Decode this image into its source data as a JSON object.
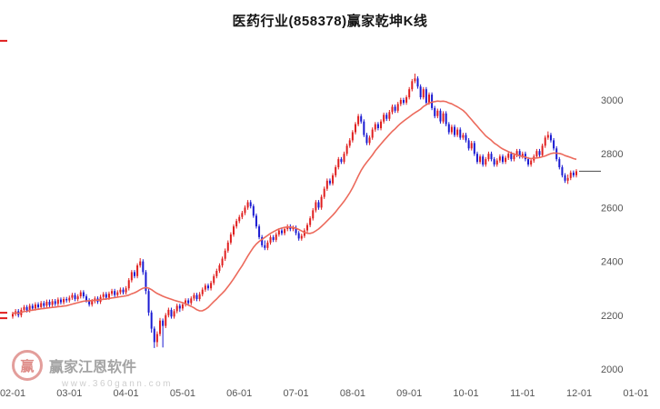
{
  "title": "医药行业(858378)赢家乾坤K线",
  "watermark": {
    "logo_char": "赢",
    "brand": "赢家江恩软件",
    "sub": "www.360gann.com"
  },
  "chart_data": {
    "type": "candlestick",
    "title": "医药行业(858378)赢家乾坤K线",
    "symbol": "858378",
    "x_ticks": [
      "02-01",
      "03-01",
      "04-01",
      "05-01",
      "06-01",
      "07-01",
      "08-01",
      "09-01",
      "10-01",
      "11-01",
      "12-01",
      "01-01"
    ],
    "y_ticks": [
      3000,
      2800,
      2600,
      2400,
      2200,
      2000
    ],
    "ylim": [
      1980,
      3220
    ],
    "grid": false,
    "legend": "none",
    "up_color": "#e01f1f",
    "down_color": "#1a1ad2",
    "ma_color": "#ec6a5c",
    "ma_period": 20,
    "last_price": 2735,
    "edge_ticks": [
      3220,
      2209,
      2189
    ],
    "candles": [
      [
        2195,
        2213,
        2187,
        2205
      ],
      [
        2205,
        2223,
        2197,
        2215
      ],
      [
        2215,
        2223,
        2192,
        2200
      ],
      [
        2200,
        2228,
        2192,
        2220
      ],
      [
        2220,
        2238,
        2212,
        2230
      ],
      [
        2230,
        2238,
        2210,
        2218
      ],
      [
        2218,
        2243,
        2210,
        2235
      ],
      [
        2235,
        2243,
        2217,
        2225
      ],
      [
        2225,
        2248,
        2217,
        2240
      ],
      [
        2240,
        2248,
        2222,
        2230
      ],
      [
        2230,
        2253,
        2222,
        2245
      ],
      [
        2245,
        2253,
        2227,
        2235
      ],
      [
        2235,
        2258,
        2227,
        2250
      ],
      [
        2250,
        2258,
        2230,
        2238
      ],
      [
        2238,
        2260,
        2230,
        2252
      ],
      [
        2252,
        2260,
        2234,
        2242
      ],
      [
        2242,
        2266,
        2234,
        2258
      ],
      [
        2258,
        2266,
        2240,
        2248
      ],
      [
        2248,
        2268,
        2240,
        2260
      ],
      [
        2260,
        2268,
        2247,
        2255
      ],
      [
        2255,
        2273,
        2247,
        2265
      ],
      [
        2265,
        2283,
        2257,
        2275
      ],
      [
        2275,
        2283,
        2252,
        2260
      ],
      [
        2260,
        2278,
        2252,
        2270
      ],
      [
        2270,
        2293,
        2262,
        2285
      ],
      [
        2285,
        2293,
        2262,
        2270
      ],
      [
        2270,
        2278,
        2247,
        2255
      ],
      [
        2255,
        2263,
        2232,
        2240
      ],
      [
        2240,
        2260,
        2232,
        2252
      ],
      [
        2252,
        2270,
        2244,
        2262
      ],
      [
        2262,
        2270,
        2242,
        2250
      ],
      [
        2250,
        2276,
        2242,
        2268
      ],
      [
        2268,
        2286,
        2260,
        2278
      ],
      [
        2278,
        2286,
        2257,
        2265
      ],
      [
        2265,
        2288,
        2257,
        2280
      ],
      [
        2280,
        2298,
        2272,
        2290
      ],
      [
        2290,
        2298,
        2267,
        2275
      ],
      [
        2275,
        2293,
        2267,
        2285
      ],
      [
        2285,
        2303,
        2277,
        2295
      ],
      [
        2295,
        2303,
        2277,
        2285
      ],
      [
        2285,
        2308,
        2277,
        2300
      ],
      [
        2300,
        2338,
        2292,
        2330
      ],
      [
        2330,
        2368,
        2322,
        2360
      ],
      [
        2360,
        2368,
        2337,
        2345
      ],
      [
        2345,
        2393,
        2337,
        2385
      ],
      [
        2385,
        2412,
        2377,
        2400
      ],
      [
        2400,
        2408,
        2350,
        2360
      ],
      [
        2360,
        2368,
        2278,
        2290
      ],
      [
        2290,
        2298,
        2198,
        2210
      ],
      [
        2210,
        2218,
        2135,
        2150
      ],
      [
        2150,
        2158,
        2078,
        2100
      ],
      [
        2100,
        2140,
        2082,
        2130
      ],
      [
        2130,
        2190,
        2122,
        2180
      ],
      [
        2180,
        2188,
        2080,
        2160
      ],
      [
        2160,
        2208,
        2152,
        2200
      ],
      [
        2200,
        2228,
        2192,
        2220
      ],
      [
        2220,
        2228,
        2187,
        2195
      ],
      [
        2195,
        2223,
        2187,
        2215
      ],
      [
        2215,
        2243,
        2207,
        2235
      ],
      [
        2235,
        2243,
        2212,
        2225
      ],
      [
        2225,
        2248,
        2217,
        2240
      ],
      [
        2240,
        2263,
        2232,
        2255
      ],
      [
        2255,
        2263,
        2237,
        2245
      ],
      [
        2245,
        2270,
        2237,
        2262
      ],
      [
        2262,
        2283,
        2254,
        2275
      ],
      [
        2275,
        2283,
        2252,
        2260
      ],
      [
        2260,
        2286,
        2252,
        2278
      ],
      [
        2278,
        2303,
        2270,
        2295
      ],
      [
        2295,
        2318,
        2287,
        2310
      ],
      [
        2310,
        2318,
        2292,
        2300
      ],
      [
        2300,
        2328,
        2292,
        2320
      ],
      [
        2320,
        2353,
        2312,
        2345
      ],
      [
        2345,
        2373,
        2337,
        2365
      ],
      [
        2365,
        2393,
        2357,
        2385
      ],
      [
        2385,
        2418,
        2377,
        2410
      ],
      [
        2410,
        2448,
        2402,
        2440
      ],
      [
        2440,
        2478,
        2432,
        2470
      ],
      [
        2470,
        2508,
        2462,
        2500
      ],
      [
        2500,
        2538,
        2492,
        2530
      ],
      [
        2530,
        2558,
        2522,
        2550
      ],
      [
        2550,
        2573,
        2542,
        2565
      ],
      [
        2565,
        2588,
        2557,
        2580
      ],
      [
        2580,
        2608,
        2572,
        2600
      ],
      [
        2600,
        2628,
        2592,
        2620
      ],
      [
        2620,
        2628,
        2597,
        2605
      ],
      [
        2605,
        2613,
        2562,
        2570
      ],
      [
        2570,
        2578,
        2522,
        2530
      ],
      [
        2530,
        2538,
        2482,
        2490
      ],
      [
        2490,
        2498,
        2452,
        2460
      ],
      [
        2460,
        2478,
        2442,
        2450
      ],
      [
        2450,
        2478,
        2442,
        2470
      ],
      [
        2470,
        2498,
        2462,
        2490
      ],
      [
        2490,
        2498,
        2472,
        2480
      ],
      [
        2480,
        2508,
        2472,
        2500
      ],
      [
        2500,
        2523,
        2492,
        2515
      ],
      [
        2515,
        2523,
        2497,
        2505
      ],
      [
        2505,
        2528,
        2497,
        2520
      ],
      [
        2520,
        2538,
        2512,
        2530
      ],
      [
        2530,
        2538,
        2512,
        2520
      ],
      [
        2520,
        2533,
        2512,
        2525
      ],
      [
        2525,
        2533,
        2497,
        2505
      ],
      [
        2505,
        2513,
        2477,
        2485
      ],
      [
        2485,
        2503,
        2477,
        2495
      ],
      [
        2495,
        2523,
        2487,
        2515
      ],
      [
        2515,
        2543,
        2507,
        2535
      ],
      [
        2535,
        2568,
        2527,
        2560
      ],
      [
        2560,
        2598,
        2552,
        2590
      ],
      [
        2590,
        2628,
        2582,
        2620
      ],
      [
        2620,
        2628,
        2592,
        2600
      ],
      [
        2600,
        2648,
        2592,
        2640
      ],
      [
        2640,
        2678,
        2632,
        2670
      ],
      [
        2670,
        2708,
        2662,
        2700
      ],
      [
        2700,
        2708,
        2682,
        2690
      ],
      [
        2690,
        2728,
        2682,
        2720
      ],
      [
        2720,
        2758,
        2712,
        2750
      ],
      [
        2750,
        2788,
        2742,
        2780
      ],
      [
        2780,
        2788,
        2762,
        2770
      ],
      [
        2770,
        2808,
        2762,
        2800
      ],
      [
        2800,
        2838,
        2792,
        2830
      ],
      [
        2830,
        2858,
        2822,
        2850
      ],
      [
        2850,
        2888,
        2842,
        2880
      ],
      [
        2880,
        2918,
        2872,
        2910
      ],
      [
        2910,
        2948,
        2902,
        2940
      ],
      [
        2940,
        2948,
        2912,
        2920
      ],
      [
        2920,
        2928,
        2862,
        2870
      ],
      [
        2870,
        2878,
        2832,
        2840
      ],
      [
        2840,
        2868,
        2832,
        2860
      ],
      [
        2860,
        2898,
        2852,
        2890
      ],
      [
        2890,
        2918,
        2882,
        2910
      ],
      [
        2910,
        2918,
        2887,
        2895
      ],
      [
        2895,
        2928,
        2887,
        2920
      ],
      [
        2920,
        2953,
        2912,
        2945
      ],
      [
        2945,
        2953,
        2922,
        2930
      ],
      [
        2930,
        2963,
        2922,
        2955
      ],
      [
        2955,
        2983,
        2947,
        2975
      ],
      [
        2975,
        2983,
        2952,
        2960
      ],
      [
        2960,
        2993,
        2952,
        2985
      ],
      [
        2985,
        3008,
        2977,
        3000
      ],
      [
        3000,
        3008,
        2982,
        2990
      ],
      [
        2990,
        3018,
        2982,
        3010
      ],
      [
        3010,
        3048,
        3002,
        3040
      ],
      [
        3040,
        3078,
        3032,
        3070
      ],
      [
        3070,
        3098,
        3062,
        3080
      ],
      [
        3080,
        3088,
        3042,
        3050
      ],
      [
        3050,
        3058,
        3002,
        3010
      ],
      [
        3010,
        3048,
        3002,
        3040
      ],
      [
        3040,
        3048,
        2982,
        2990
      ],
      [
        2990,
        3028,
        2982,
        3020
      ],
      [
        3020,
        3028,
        2962,
        2970
      ],
      [
        2970,
        2978,
        2932,
        2940
      ],
      [
        2940,
        2968,
        2932,
        2960
      ],
      [
        2960,
        2968,
        2912,
        2920
      ],
      [
        2920,
        2958,
        2912,
        2950
      ],
      [
        2950,
        2958,
        2902,
        2910
      ],
      [
        2910,
        2918,
        2872,
        2880
      ],
      [
        2880,
        2908,
        2872,
        2900
      ],
      [
        2900,
        2908,
        2862,
        2870
      ],
      [
        2870,
        2898,
        2862,
        2890
      ],
      [
        2890,
        2898,
        2852,
        2860
      ],
      [
        2860,
        2878,
        2852,
        2870
      ],
      [
        2870,
        2878,
        2842,
        2850
      ],
      [
        2850,
        2858,
        2812,
        2820
      ],
      [
        2820,
        2848,
        2812,
        2840
      ],
      [
        2840,
        2848,
        2792,
        2800
      ],
      [
        2800,
        2808,
        2762,
        2770
      ],
      [
        2770,
        2798,
        2762,
        2790
      ],
      [
        2790,
        2798,
        2752,
        2760
      ],
      [
        2760,
        2788,
        2752,
        2780
      ],
      [
        2780,
        2808,
        2772,
        2800
      ],
      [
        2800,
        2808,
        2772,
        2780
      ],
      [
        2780,
        2788,
        2752,
        2760
      ],
      [
        2760,
        2783,
        2752,
        2775
      ],
      [
        2775,
        2798,
        2767,
        2790
      ],
      [
        2790,
        2798,
        2762,
        2770
      ],
      [
        2770,
        2793,
        2762,
        2785
      ],
      [
        2785,
        2808,
        2777,
        2800
      ],
      [
        2800,
        2808,
        2772,
        2780
      ],
      [
        2780,
        2803,
        2772,
        2795
      ],
      [
        2795,
        2818,
        2787,
        2810
      ],
      [
        2810,
        2818,
        2782,
        2790
      ],
      [
        2790,
        2808,
        2782,
        2800
      ],
      [
        2800,
        2808,
        2772,
        2780
      ],
      [
        2780,
        2788,
        2752,
        2760
      ],
      [
        2760,
        2783,
        2752,
        2775
      ],
      [
        2775,
        2798,
        2767,
        2790
      ],
      [
        2790,
        2818,
        2782,
        2810
      ],
      [
        2810,
        2818,
        2787,
        2795
      ],
      [
        2795,
        2838,
        2787,
        2830
      ],
      [
        2830,
        2868,
        2822,
        2860
      ],
      [
        2860,
        2883,
        2852,
        2870
      ],
      [
        2870,
        2878,
        2842,
        2850
      ],
      [
        2850,
        2858,
        2812,
        2820
      ],
      [
        2820,
        2828,
        2772,
        2780
      ],
      [
        2780,
        2788,
        2742,
        2750
      ],
      [
        2750,
        2758,
        2712,
        2720
      ],
      [
        2720,
        2728,
        2692,
        2700
      ],
      [
        2700,
        2723,
        2688,
        2710
      ],
      [
        2710,
        2738,
        2702,
        2730
      ],
      [
        2730,
        2738,
        2712,
        2720
      ],
      [
        2720,
        2743,
        2712,
        2735
      ]
    ]
  }
}
